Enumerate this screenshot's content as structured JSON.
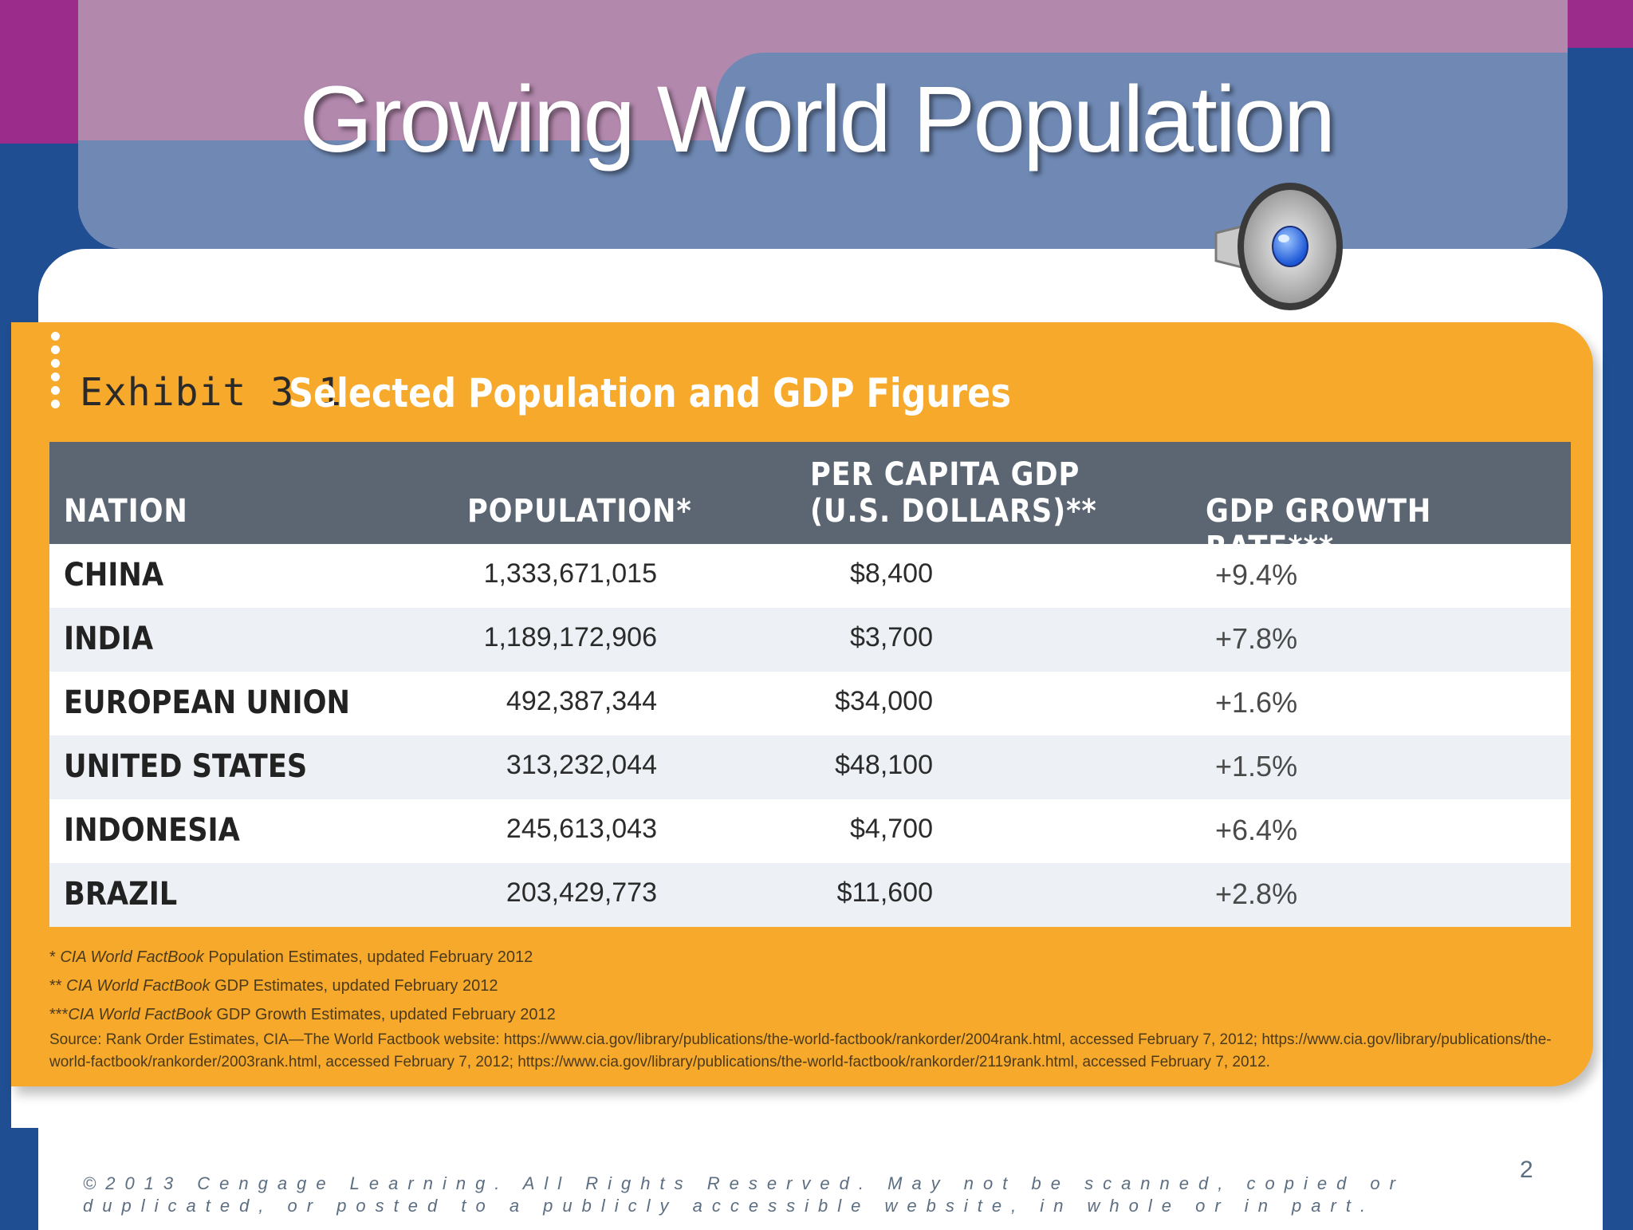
{
  "slide": {
    "title": "Growing World Population",
    "page_number": "2",
    "copyright": "©2013 Cengage Learning. All Rights Reserved. May not be scanned, copied or duplicated, or posted to a publicly accessible website, in whole or in part."
  },
  "exhibit": {
    "label": "Exhibit 3.1",
    "title": "Selected Population and GDP Figures",
    "headers": {
      "nation": "NATION",
      "population": "POPULATION*",
      "gdp_line1": "PER CAPITA GDP",
      "gdp_line2": "(U.S. DOLLARS)**",
      "growth": "GDP GROWTH RATE***"
    },
    "rows": [
      {
        "nation": "CHINA",
        "population": "1,333,671,015",
        "gdp": "$8,400",
        "growth": "+9.4%"
      },
      {
        "nation": "INDIA",
        "population": "1,189,172,906",
        "gdp": "$3,700",
        "growth": "+7.8%"
      },
      {
        "nation": "EUROPEAN UNION",
        "population": "492,387,344",
        "gdp": "$34,000",
        "growth": "+1.6%"
      },
      {
        "nation": "UNITED STATES",
        "population": "313,232,044",
        "gdp": "$48,100",
        "growth": "+1.5%"
      },
      {
        "nation": "INDONESIA",
        "population": "245,613,043",
        "gdp": "$4,700",
        "growth": "+6.4%"
      },
      {
        "nation": "BRAZIL",
        "population": "203,429,773",
        "gdp": "$11,600",
        "growth": "+2.8%"
      }
    ],
    "notes": [
      {
        "prefix": "* ",
        "source_name": "CIA World FactBook",
        "text": " Population Estimates, updated February 2012"
      },
      {
        "prefix": "** ",
        "source_name": "CIA World FactBook",
        "text": " GDP Estimates, updated February 2012"
      },
      {
        "prefix": "***",
        "source_name": "CIA World FactBook",
        "text": " GDP Growth Estimates, updated February 2012"
      }
    ],
    "source": "Source: Rank Order Estimates, CIA—The World Factbook website: https://www.cia.gov/library/publications/the-world-factbook/rankorder/2004rank.html, accessed February 7, 2012; https://www.cia.gov/library/publications/the-world-factbook/rankorder/2003rank.html, accessed February 7, 2012; https://www.cia.gov/library/publications/the-world-factbook/rankorder/2119rank.html, accessed February 7, 2012."
  },
  "colors": {
    "magenta": "#9b2c8c",
    "navy": "#1f4f92",
    "orange": "#f6a92b",
    "table_header": "#5b6672"
  },
  "icons": {
    "audio": "speaker-icon"
  }
}
